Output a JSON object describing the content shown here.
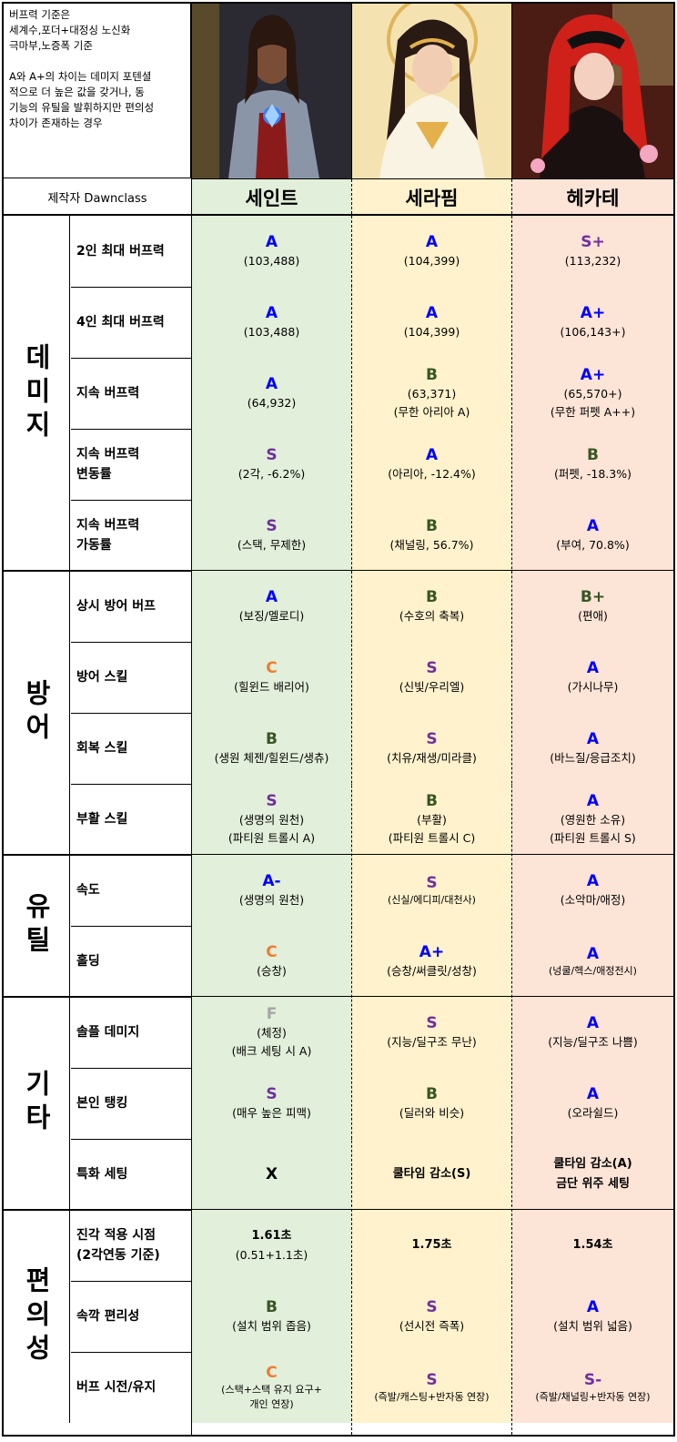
{
  "note": {
    "para1": "버프력 기준은\n세계수,포더+대정싱 노신화\n극마부,노증폭 기준",
    "para2": "A와 A+의 차이는 데미지 포텐셜\n적으로 더 높은 값을 갖거나, 동\n기능의 유틸을 발휘하지만 편의성\n차이가 존재하는 경우"
  },
  "author": "제작자 Dawnclass",
  "colors": {
    "saint_bg": "#e2efda",
    "seraphim_bg": "#fff2cc",
    "hecate_bg": "#fce4d6",
    "A": "#0000ff",
    "S": "#7030a0",
    "B": "#375623",
    "C": "#ed7d31",
    "F": "#a6a6a6",
    "X": "#000000"
  },
  "classes": [
    "세인트",
    "세라핌",
    "헤카테"
  ],
  "portraits": [
    "saint-portrait",
    "seraphim-portrait",
    "hecate-portrait"
  ],
  "groups": [
    {
      "label": "데미지",
      "rows": [
        {
          "label": "2인 최대 버프력",
          "cells": [
            {
              "grade": "A",
              "sub": "(103,488)"
            },
            {
              "grade": "A",
              "sub": "(104,399)"
            },
            {
              "grade": "S+",
              "sub": "(113,232)"
            }
          ]
        },
        {
          "label": "4인 최대 버프력",
          "cells": [
            {
              "grade": "A",
              "sub": "(103,488)"
            },
            {
              "grade": "A",
              "sub": "(104,399)"
            },
            {
              "grade": "A+",
              "sub": "(106,143+)"
            }
          ]
        },
        {
          "label": "지속 버프력",
          "cells": [
            {
              "grade": "A",
              "sub": "(64,932)"
            },
            {
              "grade": "B",
              "sub": "(63,371)\n(무한 아리아 A)"
            },
            {
              "grade": "A+",
              "sub": "(65,570+)\n(무한 퍼펫 A++)"
            }
          ]
        },
        {
          "label": "지속 버프력\n변동률",
          "cells": [
            {
              "grade": "S",
              "sub": "(2각, -6.2%)"
            },
            {
              "grade": "A",
              "sub": "(아리아, -12.4%)"
            },
            {
              "grade": "B",
              "sub": "(퍼펫, -18.3%)"
            }
          ]
        },
        {
          "label": "지속 버프력\n가동률",
          "cells": [
            {
              "grade": "S",
              "sub": "(스택, 무제한)"
            },
            {
              "grade": "B",
              "sub": "(채널링, 56.7%)"
            },
            {
              "grade": "A",
              "sub": "(부여, 70.8%)"
            }
          ]
        }
      ]
    },
    {
      "label": "방어",
      "rows": [
        {
          "label": "상시 방어 버프",
          "cells": [
            {
              "grade": "A",
              "sub": "(보징/멜로디)"
            },
            {
              "grade": "B",
              "sub": "(수호의 축복)"
            },
            {
              "grade": "B+",
              "sub": "(편애)"
            }
          ]
        },
        {
          "label": "방어 스킬",
          "cells": [
            {
              "grade": "C",
              "sub": "(힐윈드 배리어)"
            },
            {
              "grade": "S",
              "sub": "(신빛/우리엘)"
            },
            {
              "grade": "A",
              "sub": "(가시나무)"
            }
          ]
        },
        {
          "label": "회복 스킬",
          "cells": [
            {
              "grade": "B",
              "sub": "(생원 체젠/힐윈드/생츄)"
            },
            {
              "grade": "S",
              "sub": "(치유/재생/미라클)"
            },
            {
              "grade": "A",
              "sub": "(바느질/응급조치)"
            }
          ]
        },
        {
          "label": "부활 스킬",
          "cells": [
            {
              "grade": "S",
              "sub": "(생명의 원천)\n(파티원 트롤시 A)"
            },
            {
              "grade": "B",
              "sub": "(부활)\n(파티원 트롤시 C)"
            },
            {
              "grade": "A",
              "sub": "(영원한 소유)\n(파티원 트롤시 S)"
            }
          ]
        }
      ]
    },
    {
      "label": "유틸",
      "rows": [
        {
          "label": "속도",
          "cells": [
            {
              "grade": "A-",
              "sub": "(생명의 원천)"
            },
            {
              "grade": "S",
              "sub": "(신실/에디피/대천사)",
              "small": true
            },
            {
              "grade": "A",
              "sub": "(소악마/애정)"
            }
          ]
        },
        {
          "label": "홀딩",
          "cells": [
            {
              "grade": "C",
              "sub": "(승창)"
            },
            {
              "grade": "A+",
              "sub": "(승창/써클릿/성창)"
            },
            {
              "grade": "A",
              "sub": "(넝쿨/헥스/애정전시)",
              "small": true
            }
          ]
        }
      ]
    },
    {
      "label": "기타",
      "rows": [
        {
          "label": "솔플 데미지",
          "cells": [
            {
              "grade": "F",
              "sub": "(체정)\n(배크 세팅 시 A)"
            },
            {
              "grade": "S",
              "sub": "(지능/딜구조 무난)"
            },
            {
              "grade": "A",
              "sub": "(지능/딜구조 나쁨)"
            }
          ]
        },
        {
          "label": "본인 탱킹",
          "cells": [
            {
              "grade": "S",
              "sub": "(매우 높은 피맥)"
            },
            {
              "grade": "B",
              "sub": "(딜러와 비슷)"
            },
            {
              "grade": "A",
              "sub": "(오라쉴드)"
            }
          ]
        },
        {
          "label": "특화 세팅",
          "cells": [
            {
              "grade": "X",
              "sub": ""
            },
            {
              "bold": "쿨타임 감소(S)"
            },
            {
              "bold": "쿨타임 감소(A)\n금단 위주 세팅"
            }
          ]
        }
      ]
    },
    {
      "label": "편의성",
      "rows": [
        {
          "label": "진각 적용 시점\n(2각연동 기준)",
          "cells": [
            {
              "bold": "1.61초",
              "sub": "(0.51+1.1초)"
            },
            {
              "bold": "1.75초"
            },
            {
              "bold": "1.54초"
            }
          ]
        },
        {
          "label": "속깍 편리성",
          "cells": [
            {
              "grade": "B",
              "sub": "(설치 범위 좁음)"
            },
            {
              "grade": "S",
              "sub": "(선시전 즉폭)"
            },
            {
              "grade": "A",
              "sub": "(설치 범위 넓음)"
            }
          ]
        },
        {
          "label": "버프 시전/유지",
          "cells": [
            {
              "grade": "C",
              "sub": "(스택+스택 유지 요구+\n개인 연장)",
              "small": true
            },
            {
              "grade": "S",
              "sub": "(즉발/캐스팅+반자동 연장)",
              "small": true
            },
            {
              "grade": "S-",
              "sub": "(즉발/채널링+반자동 연장)",
              "small": true
            }
          ]
        }
      ]
    }
  ]
}
